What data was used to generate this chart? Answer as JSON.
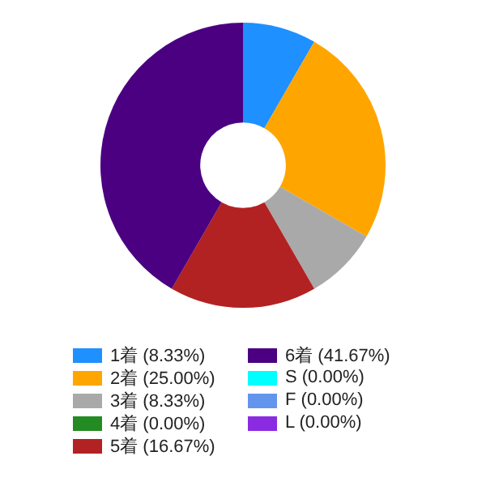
{
  "chart_data": {
    "type": "donut",
    "categories": [
      "1着 (8.33%)",
      "2着 (25.00%)",
      "3着 (8.33%)",
      "4着 (0.00%)",
      "5着 (16.67%)",
      "6着 (41.67%)",
      "S (0.00%)",
      "F (0.00%)",
      "L (0.00%)"
    ],
    "values": [
      8.33,
      25.0,
      8.33,
      0,
      16.67,
      41.67,
      0,
      0,
      0
    ],
    "colors": [
      "#1e90ff",
      "#ffa500",
      "#a9a9a9",
      "#228b22",
      "#b22222",
      "#4b0082",
      "#00ffff",
      "#6495ed",
      "#8a2be2"
    ],
    "legend": "bottom"
  }
}
